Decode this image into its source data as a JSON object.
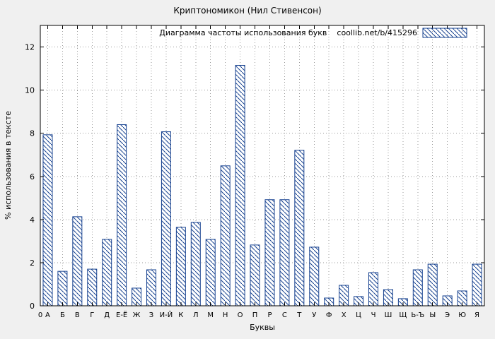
{
  "chart_data": {
    "type": "bar",
    "title": "Криптономикон (Нил Стивенсон)",
    "legend": {
      "label": "Диаграмма частоты использования букв",
      "source": "coollib.net/b/415296",
      "position": "top-right-inside"
    },
    "xlabel": "Буквы",
    "ylabel": "% использования в тексте",
    "x_origin_label": "0",
    "categories": [
      "А",
      "Б",
      "В",
      "Г",
      "Д",
      "Е-Ё",
      "Ж",
      "З",
      "И-Й",
      "К",
      "Л",
      "М",
      "Н",
      "О",
      "П",
      "Р",
      "С",
      "Т",
      "У",
      "Ф",
      "Х",
      "Ц",
      "Ч",
      "Ш",
      "Щ",
      "Ь-Ъ",
      "Ы",
      "Э",
      "Ю",
      "Я"
    ],
    "values": [
      7.93,
      1.6,
      4.13,
      1.7,
      3.08,
      8.4,
      0.82,
      1.67,
      8.07,
      3.64,
      3.87,
      3.08,
      6.49,
      11.15,
      2.82,
      4.92,
      4.92,
      7.21,
      2.72,
      0.36,
      0.95,
      0.43,
      1.54,
      0.75,
      0.33,
      1.67,
      1.93,
      0.46,
      0.69,
      1.93
    ],
    "ylim": [
      0,
      13
    ],
    "yticks": [
      0,
      2,
      4,
      6,
      8,
      10,
      12
    ],
    "grid": true,
    "bar_fill_style": "diagonal-hatch",
    "colors": {
      "bar": "#16418f",
      "background": "#f0f0f0",
      "plot_background": "#ffffff",
      "grid": "#9a9a9a",
      "axis": "#000000",
      "text": "#000000"
    }
  }
}
